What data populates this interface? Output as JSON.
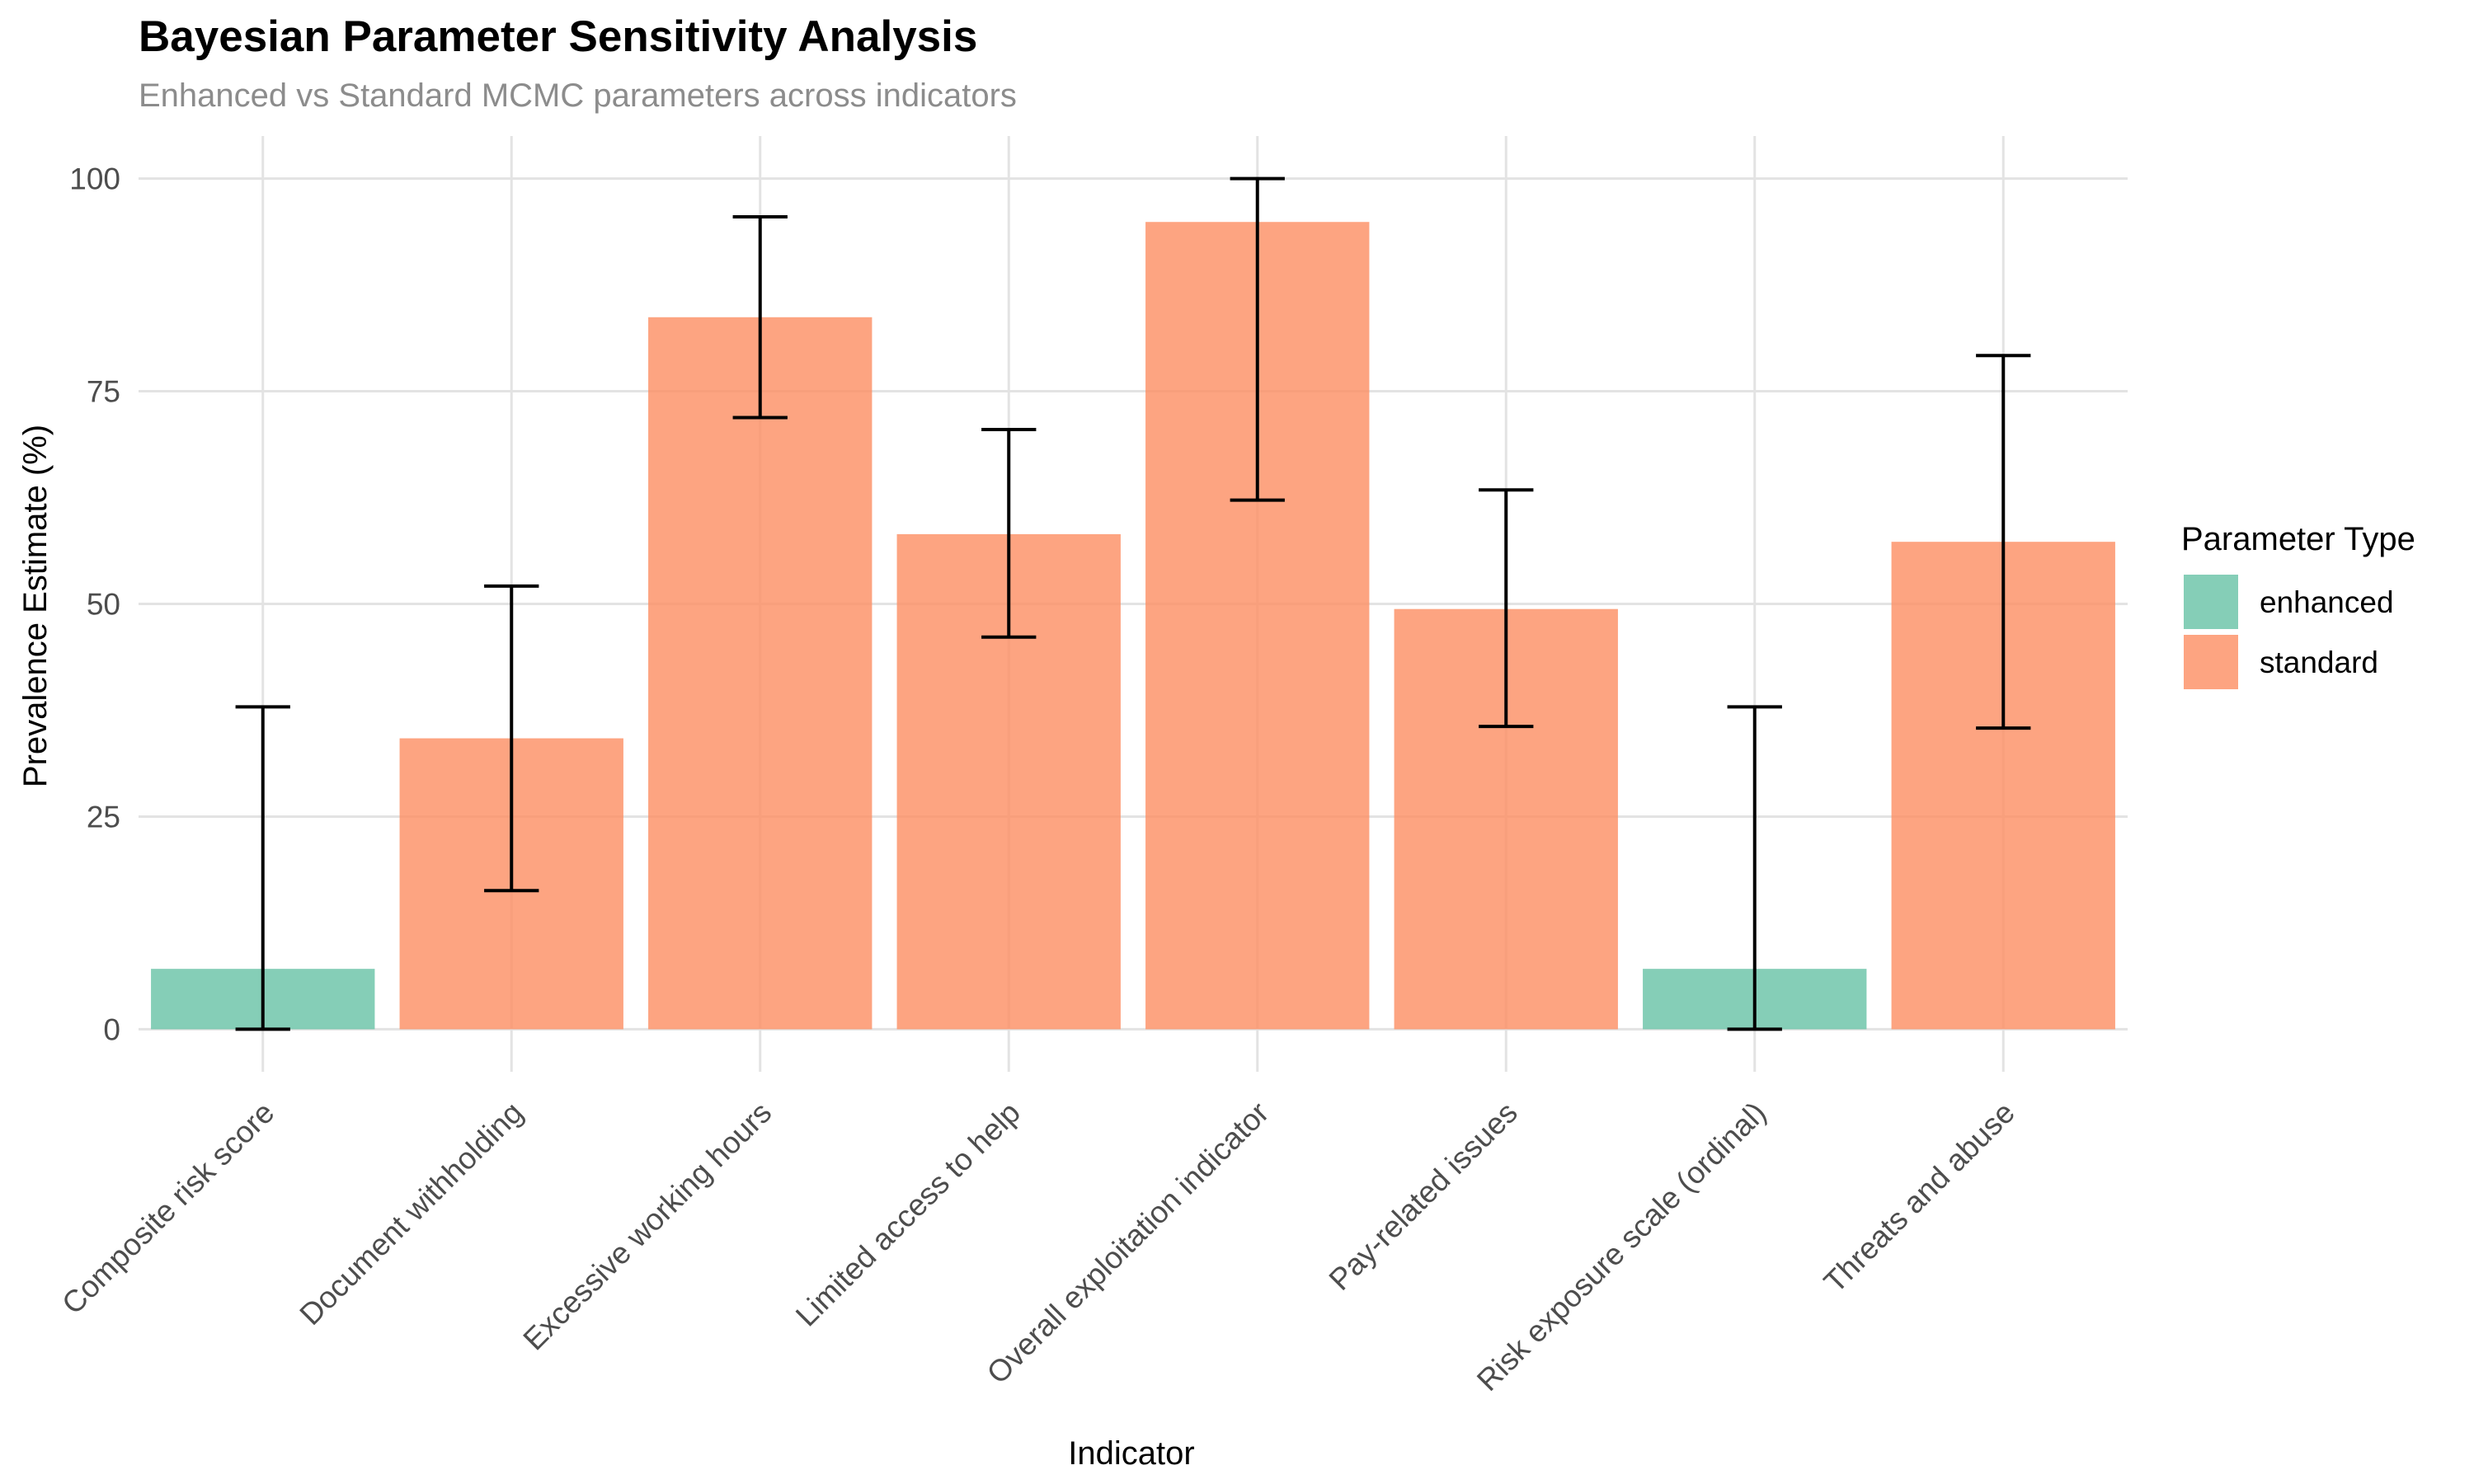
{
  "chart_data": {
    "type": "bar",
    "title": "Bayesian Parameter Sensitivity Analysis",
    "subtitle": "Enhanced vs Standard MCMC parameters across indicators",
    "xlabel": "Indicator",
    "ylabel": "Prevalence Estimate (%)",
    "ylim": [
      -5,
      105
    ],
    "yticks": [
      0,
      25,
      50,
      75,
      100
    ],
    "grid": true,
    "legend": {
      "title": "Parameter Type",
      "placement": "right",
      "entries": [
        {
          "name": "enhanced",
          "color": "#66c2a5"
        },
        {
          "name": "standard",
          "color": "#fc8d62"
        }
      ]
    },
    "categories": [
      "Composite risk score",
      "Document withholding",
      "Excessive working hours",
      "Limited access to help",
      "Overall exploitation indicator",
      "Pay-related issues",
      "Risk exposure scale (ordinal)",
      "Threats and abuse"
    ],
    "parameter_type": [
      "enhanced",
      "standard",
      "standard",
      "standard",
      "standard",
      "standard",
      "enhanced",
      "standard"
    ],
    "values": [
      7.1,
      34.2,
      83.7,
      58.2,
      94.9,
      49.4,
      7.1,
      57.3
    ],
    "error_lower": [
      0.0,
      16.3,
      71.9,
      46.1,
      62.2,
      35.6,
      0.0,
      35.4
    ],
    "error_upper": [
      37.9,
      52.1,
      95.5,
      70.5,
      100.0,
      63.4,
      37.9,
      79.2
    ]
  }
}
